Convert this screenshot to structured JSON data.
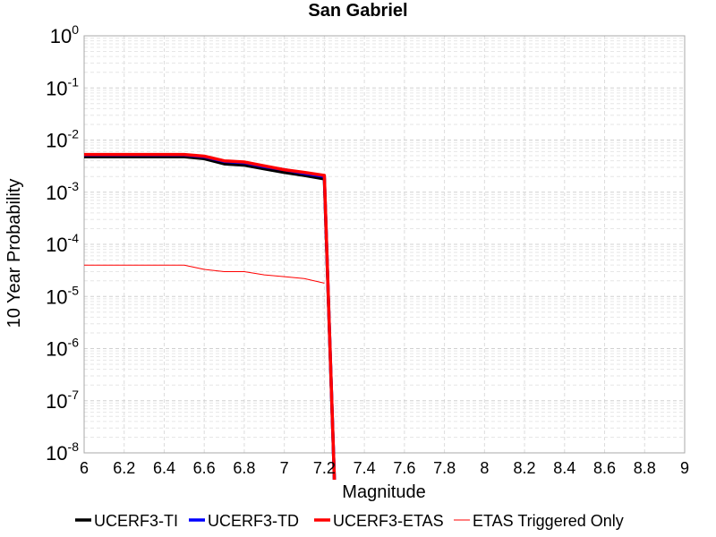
{
  "chart_data": {
    "type": "line",
    "title": "San Gabriel",
    "xlabel": "Magnitude",
    "ylabel": "10 Year Probability",
    "xlim": [
      6,
      9
    ],
    "ylim": [
      1e-08,
      1
    ],
    "yscale": "log",
    "grid": true,
    "legend_position": "bottom",
    "xticks": [
      "6",
      "6.2",
      "6.4",
      "6.6",
      "6.8",
      "7",
      "7.2",
      "7.4",
      "7.6",
      "7.8",
      "8",
      "8.2",
      "8.4",
      "8.6",
      "8.8",
      "9"
    ],
    "yticks": [
      {
        "base": "10",
        "exp": "0"
      },
      {
        "base": "10",
        "exp": "-1"
      },
      {
        "base": "10",
        "exp": "-2"
      },
      {
        "base": "10",
        "exp": "-3"
      },
      {
        "base": "10",
        "exp": "-4"
      },
      {
        "base": "10",
        "exp": "-5"
      },
      {
        "base": "10",
        "exp": "-6"
      },
      {
        "base": "10",
        "exp": "-7"
      },
      {
        "base": "10",
        "exp": "-8"
      }
    ],
    "series": [
      {
        "name": "UCERF3-TI",
        "color": "#000000",
        "x": [
          6.0,
          6.5,
          6.6,
          6.7,
          6.8,
          6.9,
          7.0,
          7.1,
          7.2,
          7.25
        ],
        "y": [
          0.0048,
          0.0048,
          0.0044,
          0.0035,
          0.0033,
          0.0028,
          0.0024,
          0.0021,
          0.0018,
          1e-09
        ]
      },
      {
        "name": "UCERF3-TD",
        "color": "#0000ff",
        "x": [
          6.0,
          6.5,
          6.6,
          6.7,
          6.8,
          6.9,
          7.0,
          7.1,
          7.2,
          7.25
        ],
        "y": [
          0.0052,
          0.0052,
          0.0048,
          0.0039,
          0.0037,
          0.0031,
          0.0027,
          0.0023,
          0.002,
          1e-09
        ]
      },
      {
        "name": "UCERF3-ETAS",
        "color": "#ff0000",
        "x": [
          6.0,
          6.5,
          6.6,
          6.7,
          6.8,
          6.9,
          7.0,
          7.1,
          7.2,
          7.25
        ],
        "y": [
          0.0053,
          0.0053,
          0.0049,
          0.004,
          0.0038,
          0.0032,
          0.0027,
          0.0024,
          0.0021,
          1e-09
        ]
      },
      {
        "name": "ETAS Triggered Only",
        "color": "#ff0000",
        "x": [
          6.0,
          6.5,
          6.6,
          6.7,
          6.8,
          6.9,
          7.0,
          7.1,
          7.2
        ],
        "y": [
          4e-05,
          4e-05,
          3.3e-05,
          3e-05,
          3e-05,
          2.6e-05,
          2.4e-05,
          2.2e-05,
          1.8e-05
        ]
      }
    ]
  }
}
